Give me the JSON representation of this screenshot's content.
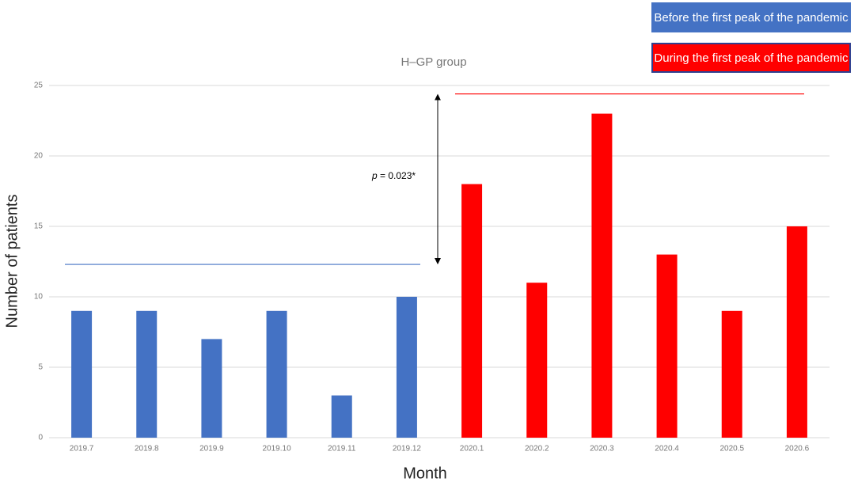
{
  "chart_data": {
    "type": "bar",
    "title": "H–GP group",
    "x_label": "Month",
    "y_label": "Number of patients",
    "categories": [
      "2019.7",
      "2019.8",
      "2019.9",
      "2019.10",
      "2019.11",
      "2019.12",
      "2020.1",
      "2020.2",
      "2020.3",
      "2020.4",
      "2020.5",
      "2020.6"
    ],
    "series": [
      {
        "name": "Before the first peak of the pandemic",
        "color": "#4472c4",
        "values": [
          9,
          9,
          7,
          9,
          3,
          10,
          null,
          null,
          null,
          null,
          null,
          null
        ]
      },
      {
        "name": "During the first peak of the pandemic",
        "color": "#ff0000",
        "values": [
          null,
          null,
          null,
          null,
          null,
          null,
          18,
          11,
          23,
          13,
          9,
          15
        ]
      }
    ],
    "reference_lines": [
      {
        "value": 12.3,
        "color": "#4472c4"
      },
      {
        "value": 24.4,
        "color": "#ff0000"
      }
    ],
    "annotation": {
      "symbol": "p",
      "text": " = 0.023*"
    },
    "ylim": [
      0,
      25
    ],
    "yticks": [
      0,
      5,
      10,
      15,
      20,
      25
    ],
    "grid": true
  }
}
